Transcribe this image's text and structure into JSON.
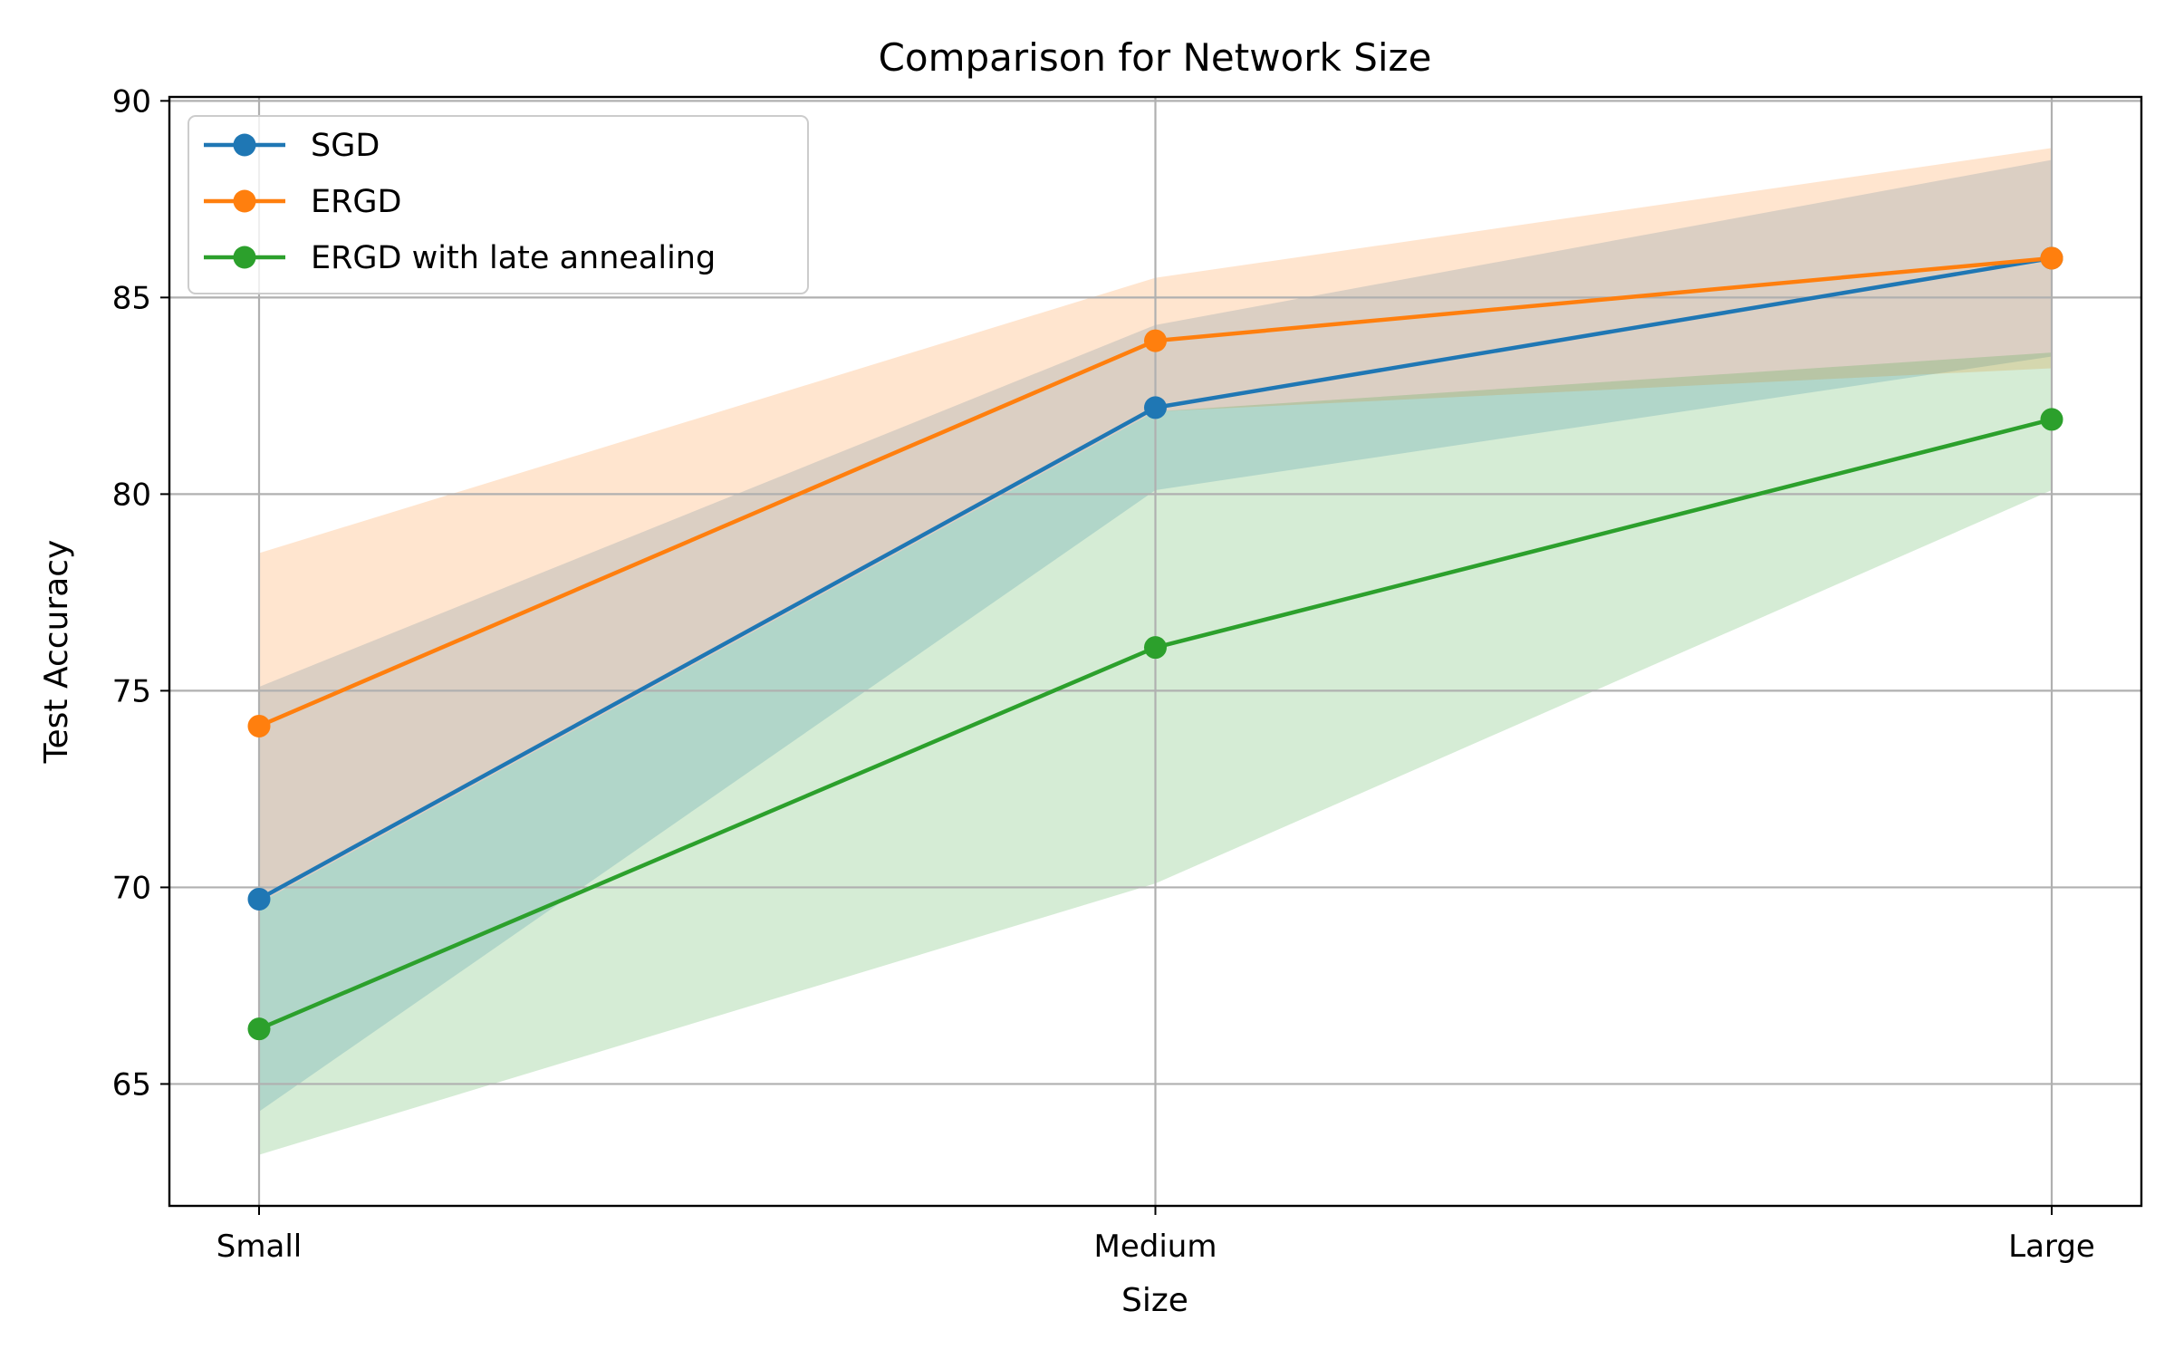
{
  "chart_data": {
    "type": "line",
    "title": "Comparison for Network Size",
    "xlabel": "Size",
    "ylabel": "Test Accuracy",
    "categories": [
      "Small",
      "Medium",
      "Large"
    ],
    "ylim": [
      61.9,
      90.1
    ],
    "yticks": [
      65,
      70,
      75,
      80,
      85,
      90
    ],
    "grid": true,
    "legend_position": "upper-left",
    "series": [
      {
        "name": "SGD",
        "color": "#1f77b4",
        "band_color": "#1f77b4",
        "band_opacity": 0.2,
        "values": [
          69.7,
          82.2,
          86.0
        ],
        "lower": [
          64.3,
          80.1,
          83.5
        ],
        "upper": [
          75.1,
          84.3,
          88.5
        ]
      },
      {
        "name": "ERGD",
        "color": "#ff7f0e",
        "band_color": "#ff7f0e",
        "band_opacity": 0.2,
        "values": [
          74.1,
          83.9,
          86.0
        ],
        "lower": [
          69.6,
          82.1,
          83.2
        ],
        "upper": [
          78.5,
          85.5,
          88.8
        ]
      },
      {
        "name": "ERGD with late annealing",
        "color": "#2ca02c",
        "band_color": "#2ca02c",
        "band_opacity": 0.2,
        "values": [
          66.4,
          76.1,
          81.9
        ],
        "lower": [
          63.2,
          70.1,
          80.1
        ],
        "upper": [
          69.6,
          82.1,
          83.6
        ]
      }
    ]
  }
}
